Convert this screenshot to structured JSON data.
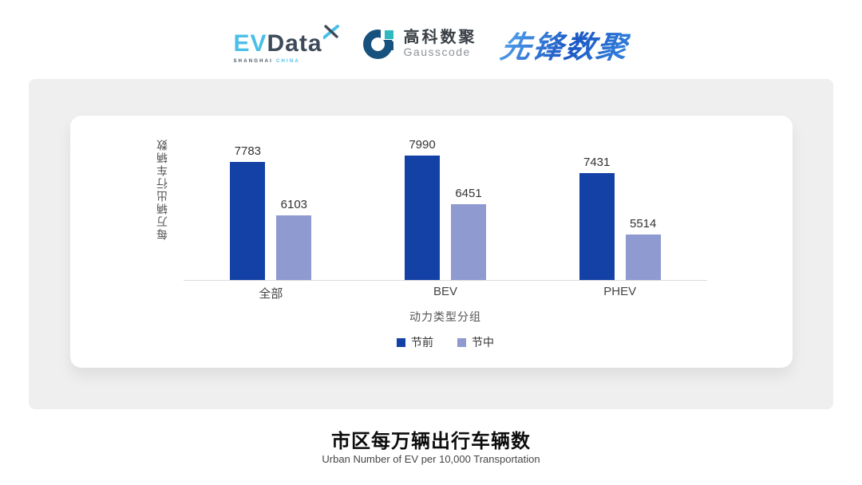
{
  "header": {
    "evdata": {
      "part1": "EV",
      "part2": "Data",
      "sub_left": "SHANGHAI",
      "sub_right": "CHINA",
      "blue": "#49BFE8",
      "dark": "#3D4A59"
    },
    "gausscode": {
      "name_cn": "高科数聚",
      "name_en": "Gausscode",
      "dark": "#16527D",
      "teal": "#2EB9C0"
    },
    "pioneer": {
      "name": "先锋数聚",
      "blue_light": "#4D9BE8",
      "blue_dark": "#1B57C4"
    }
  },
  "chart_data": {
    "type": "bar",
    "title": "市区每万辆出行车辆数",
    "subtitle": "Urban Number of EV per 10,000 Transportation",
    "xlabel": "动力类型分组",
    "ylabel": "每万辆出行车辆数",
    "categories": [
      "全部",
      "BEV",
      "PHEV"
    ],
    "series": [
      {
        "name": "节前",
        "color": "#1441A5",
        "values": [
          7783,
          7990,
          7431
        ]
      },
      {
        "name": "节中",
        "color": "#8E9AD0",
        "values": [
          6103,
          6451,
          5514
        ]
      }
    ],
    "ylim": [
      4100,
      8450
    ],
    "grid": false,
    "legend_position": "bottom",
    "value_labels": true
  }
}
